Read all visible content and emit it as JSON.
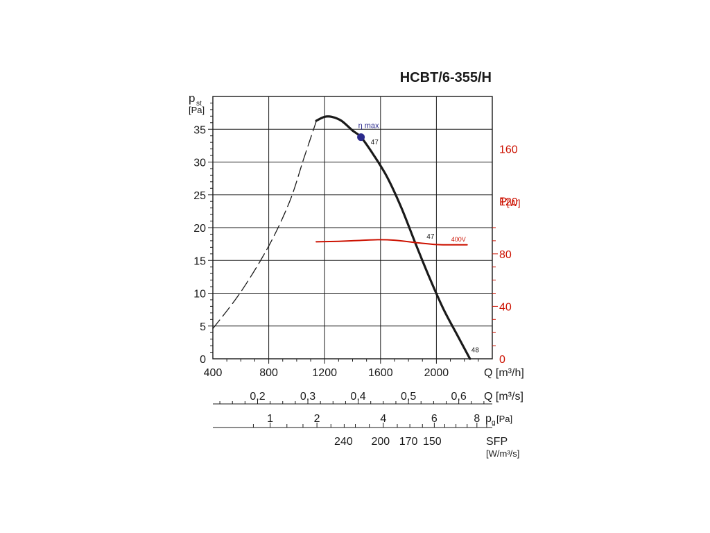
{
  "chart_data": {
    "type": "line",
    "title": "HCBT/6-355/H",
    "y_label": {
      "main": "p",
      "sub": "st",
      "unit": "[Pa]"
    },
    "y_ticks": [
      "0",
      "5",
      "10",
      "15",
      "20",
      "25",
      "30",
      "35"
    ],
    "ylim": [
      0,
      40
    ],
    "x_label": "Q [m³/h]",
    "x_ticks": [
      "400",
      "800",
      "1200",
      "1600",
      "2000"
    ],
    "xlim": [
      400,
      2400
    ],
    "y2_label": {
      "main": "P",
      "unit": "[W]"
    },
    "y2_ticks": [
      "0",
      "40",
      "80",
      "120",
      "160"
    ],
    "y2lim": [
      0,
      200
    ],
    "scales": [
      {
        "label": "Q [m³/s]",
        "ticks": [
          {
            "text": "0,2",
            "q": 720
          },
          {
            "text": "0,3",
            "q": 1080
          },
          {
            "text": "0,4",
            "q": 1440
          },
          {
            "text": "0,5",
            "q": 1800
          },
          {
            "text": "0,6",
            "q": 2160
          }
        ]
      },
      {
        "label": "pg [Pa]",
        "ticks": [
          {
            "text": "1",
            "q": 810
          },
          {
            "text": "2",
            "q": 1145
          },
          {
            "text": "4",
            "q": 1620
          },
          {
            "text": "6",
            "q": 1985
          },
          {
            "text": "8",
            "q": 2290
          }
        ]
      },
      {
        "label": "SFP [W/m³/s]",
        "ticks": [
          {
            "text": "240",
            "q": 1335
          },
          {
            "text": "200",
            "q": 1600
          },
          {
            "text": "170",
            "q": 1800
          },
          {
            "text": "150",
            "q": 1970
          }
        ]
      }
    ],
    "series": [
      {
        "name": "",
        "style": "dashed",
        "color": "#1a1a1a",
        "points": [
          [
            400,
            4.6
          ],
          [
            600,
            10.2
          ],
          [
            800,
            17.2
          ],
          [
            950,
            24.0
          ],
          [
            1050,
            30.5
          ],
          [
            1140,
            36.2
          ]
        ]
      },
      {
        "name": "",
        "style": "solid",
        "color": "#1a1a1a",
        "points": [
          [
            1140,
            36.3
          ],
          [
            1200,
            36.9
          ],
          [
            1250,
            36.9
          ],
          [
            1320,
            36.3
          ],
          [
            1400,
            34.8
          ],
          [
            1460,
            33.8
          ],
          [
            1550,
            31.1
          ],
          [
            1650,
            27.6
          ],
          [
            1750,
            23.0
          ],
          [
            1850,
            17.6
          ],
          [
            1950,
            12.4
          ],
          [
            2050,
            7.6
          ],
          [
            2150,
            3.6
          ],
          [
            2240,
            0
          ]
        ]
      },
      {
        "name": "400V",
        "axis": "y2",
        "style": "solid",
        "color": "#cc1100",
        "points": [
          [
            1140,
            89.2
          ],
          [
            1300,
            89.6
          ],
          [
            1450,
            90.2
          ],
          [
            1580,
            90.8
          ],
          [
            1700,
            90.4
          ],
          [
            1850,
            88.6
          ],
          [
            2000,
            87.1
          ],
          [
            2100,
            86.9
          ],
          [
            2220,
            86.9
          ]
        ]
      }
    ],
    "annotations": [
      {
        "text": "η max",
        "x": 1460,
        "y": 33.8,
        "marker": true,
        "marker_color": "#2b2a8c"
      },
      {
        "text": "47",
        "x": 1530,
        "y": 33.0
      },
      {
        "text": "47",
        "x": 1930,
        "y": 18.6
      },
      {
        "text": "48",
        "x": 2250,
        "y": 1.3
      }
    ],
    "grid": true
  }
}
